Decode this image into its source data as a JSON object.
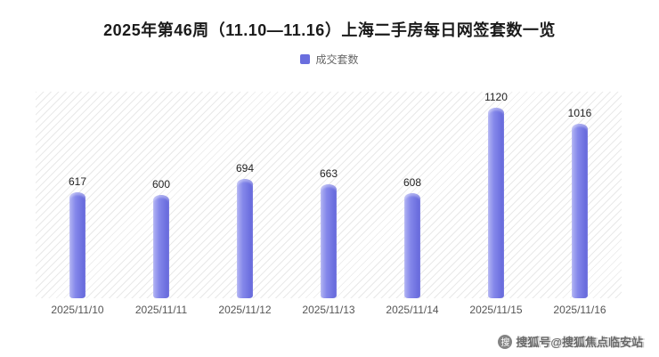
{
  "chart": {
    "title": "2025年第46周（11.10—11.16）上海二手房每日网签套数一览",
    "legend_label": "成交套数",
    "accent_color": "#6a6ede"
  },
  "chart_data": {
    "type": "bar",
    "title": "2025年第46周（11.10—11.16）上海二手房每日网签套数一览",
    "categories": [
      "2025/11/10",
      "2025/11/11",
      "2025/11/12",
      "2025/11/13",
      "2025/11/14",
      "2025/11/15",
      "2025/11/16"
    ],
    "series": [
      {
        "name": "成交套数",
        "values": [
          617,
          600,
          694,
          663,
          608,
          1120,
          1016
        ],
        "color": "#6a6ede"
      }
    ],
    "values": [
      617,
      600,
      694,
      663,
      608,
      1120,
      1016
    ],
    "xlabel": "",
    "ylabel": "",
    "ylim": [
      0,
      1200
    ],
    "grid": false,
    "legend_position": "top",
    "plot_background": "diagonal-hatch",
    "data_labels": true
  },
  "watermark": {
    "logo_char": "搜",
    "text": "搜狐号@搜狐焦点临安站"
  }
}
